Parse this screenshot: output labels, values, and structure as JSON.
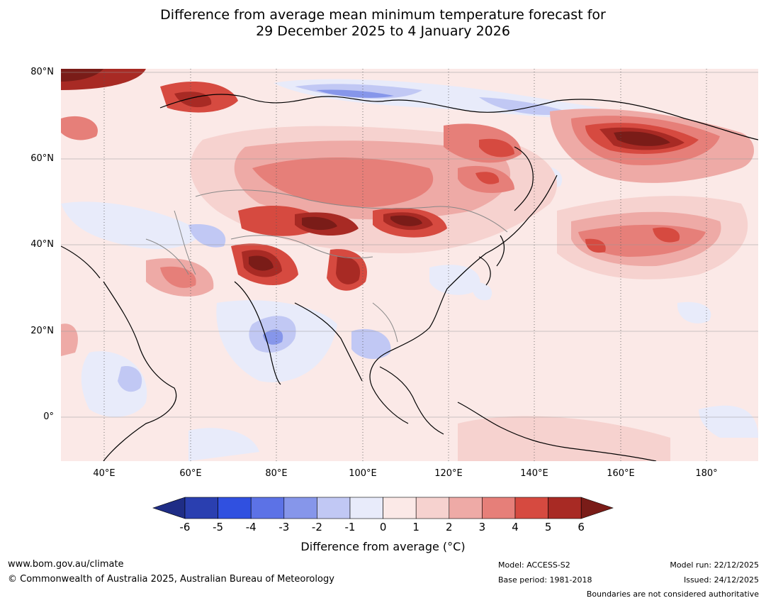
{
  "title": {
    "line1": "Difference from average mean minimum temperature forecast for",
    "line2": "29 December 2025 to 4 January 2026"
  },
  "map": {
    "lat_labels": [
      "80°N",
      "60°N",
      "40°N",
      "20°N",
      "0°"
    ],
    "lon_labels": [
      "40°E",
      "60°E",
      "80°E",
      "100°E",
      "120°E",
      "140°E",
      "160°E",
      "180°"
    ]
  },
  "colorbar": {
    "ticks": [
      "-6",
      "-5",
      "-4",
      "-3",
      "-2",
      "-1",
      "0",
      "1",
      "2",
      "3",
      "4",
      "5",
      "6"
    ],
    "colors": [
      "#1f2d86",
      "#2a3fb0",
      "#3050e0",
      "#5c72e6",
      "#8696ea",
      "#c1c8f4",
      "#e8ebfa",
      "#fbe9e7",
      "#f6d2cf",
      "#eeaaa6",
      "#e67f79",
      "#d64a40",
      "#a82a24",
      "#7a1c18"
    ],
    "label": "Difference from average (°C)"
  },
  "footer": {
    "website": "www.bom.gov.au/climate",
    "copyright": "© Commonwealth of Australia 2025, Australian Bureau of Meteorology",
    "model": "Model: ACCESS-S2",
    "base_period": "Base period: 1981-2018",
    "model_run": "Model run: 22/12/2025",
    "issued": "Issued: 24/12/2025",
    "disclaimer": "Boundaries are not considered authoritative"
  }
}
